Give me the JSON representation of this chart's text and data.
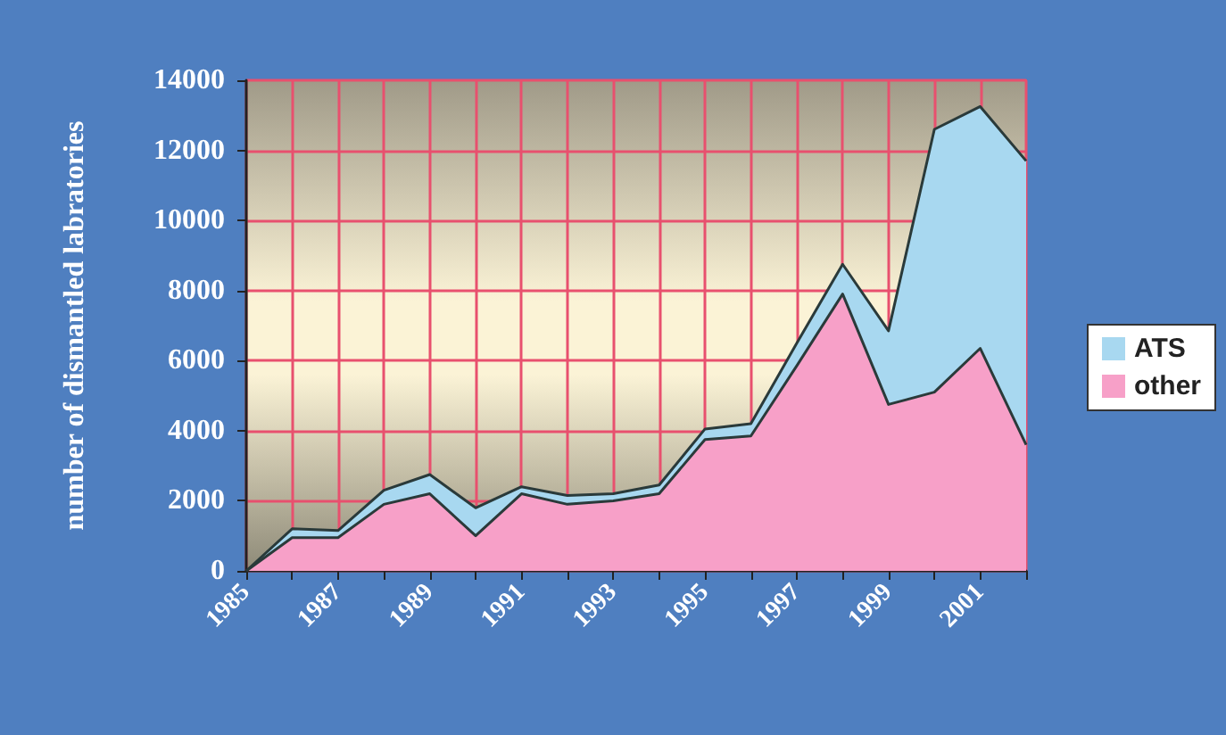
{
  "chart_data": {
    "type": "area",
    "stacked": true,
    "ylabel": "number of dismantled labratories",
    "categories": [
      "1985",
      null,
      "1987",
      null,
      "1989",
      null,
      "1991",
      null,
      "1993",
      null,
      "1995",
      null,
      "1997",
      null,
      "1999",
      null,
      "2001",
      null
    ],
    "series": [
      {
        "name": "other",
        "color": "#f7a0c8",
        "values": [
          0,
          950,
          950,
          1900,
          2200,
          1000,
          2200,
          1900,
          2000,
          2200,
          3750,
          3850,
          5850,
          7900,
          4750,
          5100,
          6350,
          3600
        ]
      },
      {
        "name": "ATS",
        "color": "#a8d8f0",
        "values": [
          0,
          250,
          200,
          400,
          550,
          800,
          200,
          250,
          200,
          250,
          300,
          350,
          650,
          850,
          2100,
          7500,
          6900,
          8100
        ]
      }
    ],
    "ylim": [
      0,
      14000
    ],
    "yticks": [
      0,
      2000,
      4000,
      6000,
      8000,
      10000,
      12000,
      14000
    ],
    "grid": true,
    "legend": "right",
    "marker": "none"
  }
}
